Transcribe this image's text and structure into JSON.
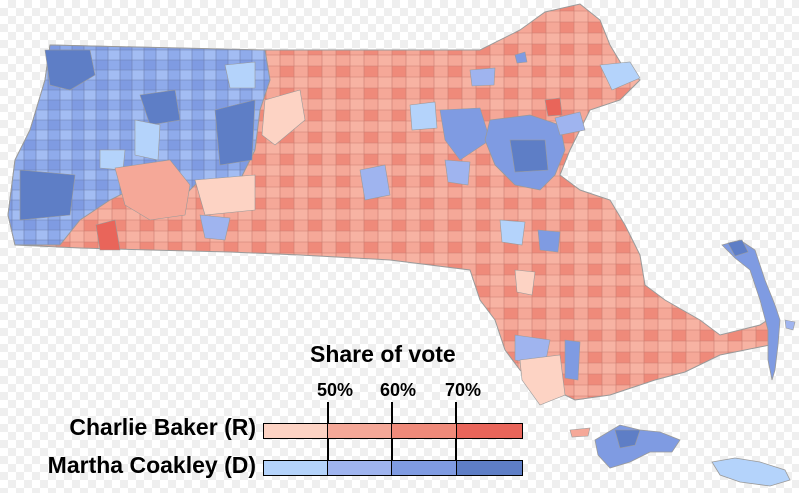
{
  "legend": {
    "title": "Share of vote",
    "ticks": [
      "50%",
      "60%",
      "70%"
    ],
    "candidates": [
      {
        "name": "Charlie Baker (R)",
        "colors": [
          "#fdd3c4",
          "#f5a898",
          "#ef8a7a",
          "#e9655a"
        ]
      },
      {
        "name": "Martha Coakley (D)",
        "colors": [
          "#b4d3fb",
          "#9fb4ef",
          "#7f9be2",
          "#5e7ec6"
        ]
      }
    ]
  },
  "map": {
    "republican_colors": [
      "#fdd3c4",
      "#f5a898",
      "#ef8a7a",
      "#e9655a"
    ],
    "democratic_colors": [
      "#b4d3fb",
      "#9fb4ef",
      "#7f9be2",
      "#5e7ec6"
    ],
    "border_color": "#9a9a9a"
  }
}
